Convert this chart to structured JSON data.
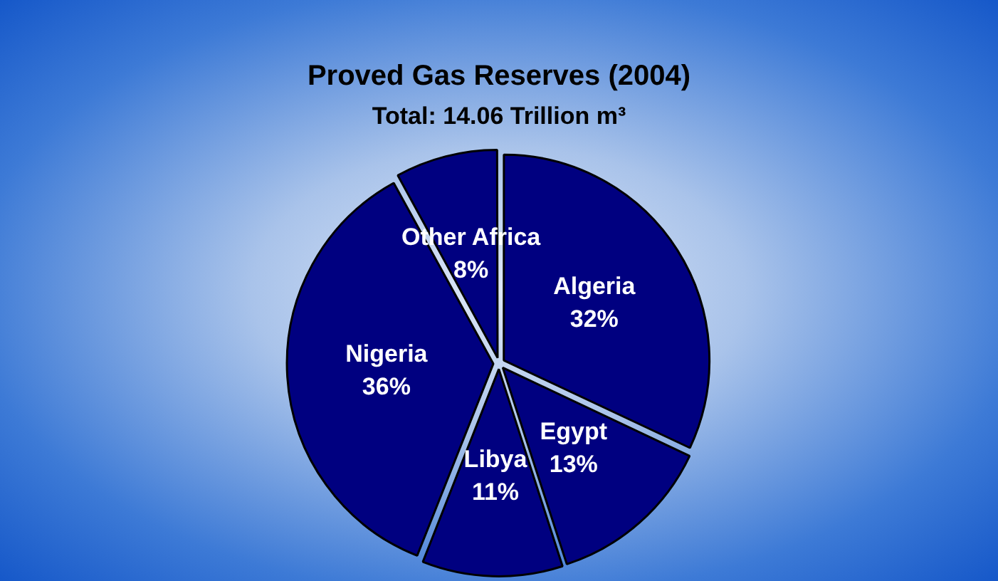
{
  "chart_data": {
    "type": "pie",
    "title": "Proved Gas Reserves (2004)",
    "subtitle": "Total: 14.06 Trillion m³",
    "categories": [
      "Algeria",
      "Egypt",
      "Libya",
      "Nigeria",
      "Other Africa"
    ],
    "values": [
      32,
      13,
      11,
      36,
      8
    ],
    "colors": [
      "#000080",
      "#000080",
      "#000080",
      "#000080",
      "#000080"
    ],
    "value_labels": [
      "32%",
      "13%",
      "11%",
      "36%",
      "8%"
    ],
    "legend": false
  }
}
